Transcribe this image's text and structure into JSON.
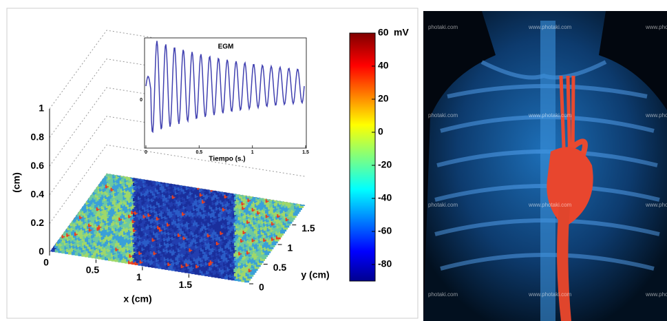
{
  "left_panel": {
    "colorbar": {
      "label": "mV",
      "lim": [
        -90,
        60
      ],
      "ticks": [
        60,
        40,
        20,
        0,
        -20,
        -40,
        -60,
        -80
      ]
    },
    "z_axis": {
      "label": "(cm)",
      "lim": [
        0,
        1
      ],
      "ticks": [
        0,
        0.2,
        0.4,
        0.6,
        0.8,
        1
      ]
    },
    "x_axis": {
      "label": "x (cm)",
      "lim": [
        0,
        2.15
      ],
      "ticks": [
        0,
        0.5,
        1,
        1.5
      ]
    },
    "y_axis": {
      "label": "y (cm)",
      "lim": [
        0,
        2
      ],
      "ticks": [
        0,
        0.5,
        1,
        1.5
      ]
    },
    "inset": {
      "title": "EGM",
      "x_label": "Tiempo (s.)",
      "xlim": [
        0,
        1.5
      ],
      "xticks": [
        0,
        0.5,
        1,
        1.5
      ],
      "yticks": [
        0
      ]
    }
  },
  "right_panel": {
    "watermarks": [
      [
        "photaki.com",
        "www.photaki.com",
        "www.photaki.com"
      ],
      [
        "photaki.com",
        "www.photaki.com",
        "www.photaki.com"
      ],
      [
        "photaki.com",
        "www.photaki.com",
        "www.photaki.com"
      ],
      [
        "photaki.com",
        "www.photaki.com",
        "www.photaki.com"
      ]
    ]
  }
}
